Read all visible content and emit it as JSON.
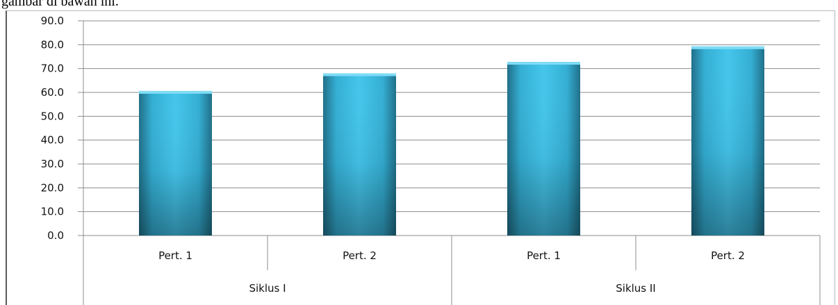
{
  "caption": "gambar di bawah ini.",
  "colors": {
    "bar_light": "#45c6ec",
    "bar_mid": "#34aed3",
    "bar_dark": "#1f6f88",
    "gridline": "#8c8c8c",
    "axis": "#8c8c8c"
  },
  "chart_data": {
    "type": "bar",
    "groups": [
      "Siklus I",
      "Siklus II"
    ],
    "categories": [
      "Pert. 1",
      "Pert. 2",
      "Pert. 1",
      "Pert. 2"
    ],
    "category_groups": [
      "Siklus I",
      "Siklus I",
      "Siklus II",
      "Siklus II"
    ],
    "values": [
      60.6,
      68.0,
      72.8,
      79.3
    ],
    "ylim": [
      0,
      90
    ],
    "yticks": [
      "0.0",
      "10.0",
      "20.0",
      "30.0",
      "40.0",
      "50.0",
      "60.0",
      "70.0",
      "80.0",
      "90.0"
    ],
    "grid": true,
    "legend": "none"
  }
}
